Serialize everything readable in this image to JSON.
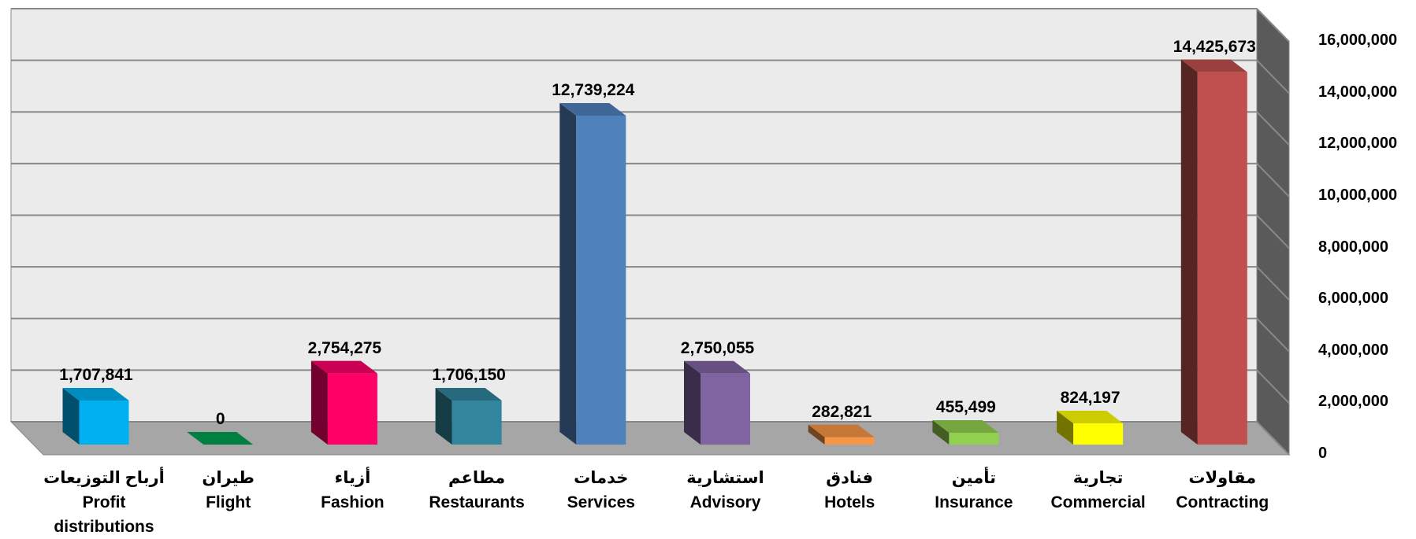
{
  "chart_data": {
    "type": "bar3d",
    "categories": [
      "أرباح التوزيعات\nProfit distributions",
      "طيران\nFlight",
      "أزياء\nFashion",
      "مطاعم\nRestaurants",
      "خدمات\nServices",
      "استشارية\nAdvisory",
      "فنادق\nHotels",
      "تأمين\nInsurance",
      "تجارية\nCommercial",
      "مقاولات\nContracting"
    ],
    "values": [
      1707841,
      0,
      2754275,
      1706150,
      12739224,
      2750055,
      282821,
      455499,
      824197,
      14425673
    ],
    "value_labels": [
      "1,707,841",
      "0",
      "2,754,275",
      "1,706,150",
      "12,739,224",
      "2,750,055",
      "282,821",
      "455,499",
      "824,197",
      "14,425,673"
    ],
    "colors": [
      "#00b0f0",
      "#00a050",
      "#ff0066",
      "#31859c",
      "#4f81bd",
      "#8064a2",
      "#f79646",
      "#92d050",
      "#ffff00",
      "#c0504d"
    ],
    "ylim": [
      0,
      16000000
    ],
    "yticks": [
      0,
      {
        "value": 2000000,
        "label": "2,000,000"
      },
      {
        "value": 4000000,
        "label": "4,000,000"
      },
      {
        "value": 6000000,
        "label": "6,000,000"
      },
      {
        "value": 8000000,
        "label": "8,000,000"
      },
      {
        "value": 10000000,
        "label": "10,000,000"
      },
      {
        "value": 12000000,
        "label": "12,000,000"
      },
      {
        "value": 14000000,
        "label": "14,000,000"
      },
      {
        "value": 16000000,
        "label": "16,000,000"
      }
    ],
    "grid": true,
    "y_axis_side": "right"
  }
}
